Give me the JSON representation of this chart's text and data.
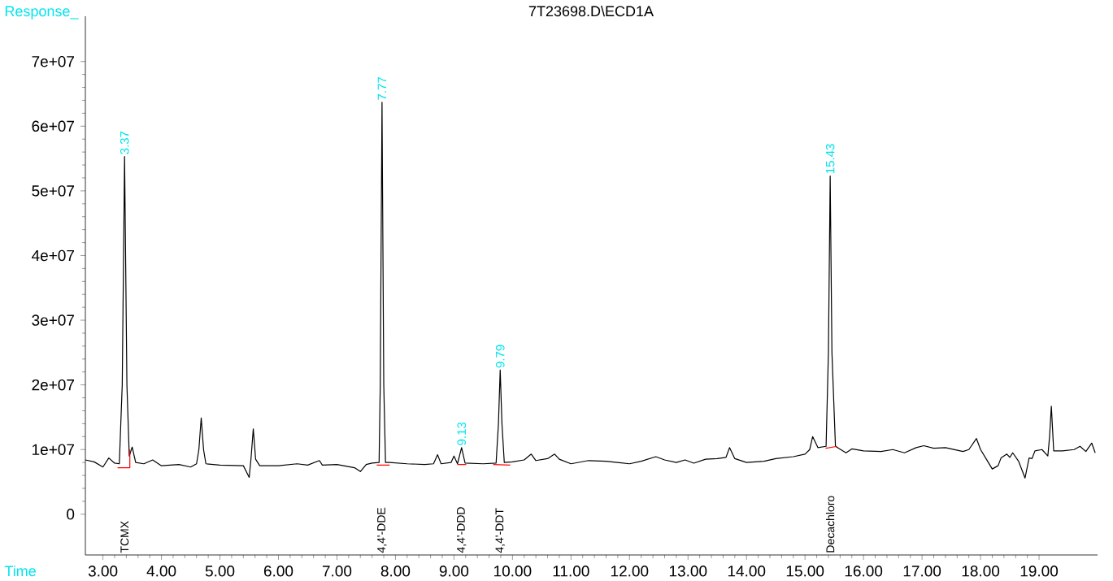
{
  "chart_data": {
    "type": "line",
    "title": "7T23698.D\\ECD1A",
    "xlabel": "Time",
    "ylabel": "Response_",
    "xlim": [
      2.7,
      20.0
    ],
    "ylim": [
      -6300000,
      77000000
    ],
    "xticks": [
      {
        "value": 3,
        "label": "3.00"
      },
      {
        "value": 4,
        "label": "4.00"
      },
      {
        "value": 5,
        "label": "5.00"
      },
      {
        "value": 6,
        "label": "6.00"
      },
      {
        "value": 7,
        "label": "7.00"
      },
      {
        "value": 8,
        "label": "8.00"
      },
      {
        "value": 9,
        "label": "9.00"
      },
      {
        "value": 10,
        "label": "10.00"
      },
      {
        "value": 11,
        "label": "11.00"
      },
      {
        "value": 12,
        "label": "12.00"
      },
      {
        "value": 13,
        "label": "13.00"
      },
      {
        "value": 14,
        "label": "14.00"
      },
      {
        "value": 15,
        "label": "15.00"
      },
      {
        "value": 16,
        "label": "16.00"
      },
      {
        "value": 17,
        "label": "17.00"
      },
      {
        "value": 18,
        "label": "18.00"
      },
      {
        "value": 19,
        "label": "19.00"
      }
    ],
    "yticks": [
      0,
      {
        "value": 10000000,
        "label": "1e+07"
      },
      {
        "value": 20000000,
        "label": "2e+07"
      },
      {
        "value": 30000000,
        "label": "3e+07"
      },
      {
        "value": 40000000,
        "label": "4e+07"
      },
      {
        "value": 50000000,
        "label": "5e+07"
      },
      {
        "value": 60000000,
        "label": "6e+07"
      },
      {
        "value": 70000000,
        "label": "7e+07"
      }
    ],
    "marker": "none",
    "line_style": "solid",
    "series": [
      {
        "color": "#000000",
        "x": [
          2.7,
          2.85,
          3.0,
          3.1,
          3.2,
          3.28,
          3.33,
          3.37,
          3.41,
          3.45,
          3.5,
          3.56,
          3.7,
          3.85,
          4.0,
          4.3,
          4.5,
          4.6,
          4.64,
          4.68,
          4.72,
          4.76,
          5.0,
          5.4,
          5.5,
          5.53,
          5.57,
          5.61,
          5.68,
          6.0,
          6.32,
          6.5,
          6.7,
          6.75,
          7.0,
          7.3,
          7.4,
          7.5,
          7.6,
          7.72,
          7.74,
          7.77,
          7.8,
          7.83,
          7.9,
          8.2,
          8.5,
          8.65,
          8.72,
          8.78,
          8.95,
          9.0,
          9.06,
          9.13,
          9.19,
          9.5,
          9.72,
          9.76,
          9.79,
          9.82,
          9.86,
          10.0,
          10.2,
          10.32,
          10.4,
          10.6,
          10.72,
          10.8,
          11.0,
          11.3,
          11.6,
          12.0,
          12.2,
          12.45,
          12.6,
          12.8,
          12.95,
          13.1,
          13.3,
          13.5,
          13.65,
          13.71,
          13.8,
          14.0,
          14.3,
          14.5,
          14.8,
          15.0,
          15.08,
          15.13,
          15.22,
          15.36,
          15.4,
          15.43,
          15.46,
          15.52,
          15.7,
          15.8,
          16.0,
          16.3,
          16.5,
          16.7,
          16.9,
          17.03,
          17.2,
          17.4,
          17.7,
          17.8,
          17.93,
          18.0,
          18.1,
          18.2,
          18.3,
          18.35,
          18.45,
          18.5,
          18.55,
          18.65,
          18.76,
          18.83,
          18.88,
          18.93,
          19.05,
          19.15,
          19.18,
          19.21,
          19.25,
          19.4,
          19.6,
          19.7,
          19.8,
          19.9,
          19.96
        ],
        "values": [
          8400000,
          8100000,
          7300000,
          8700000,
          7900000,
          7800000,
          20000000,
          55300000,
          20000000,
          9000000,
          10400000,
          8000000,
          7800000,
          8400000,
          7500000,
          7700000,
          7300000,
          7800000,
          10000000,
          14900000,
          10000000,
          7800000,
          7600000,
          7500000,
          5700000,
          8500000,
          13200000,
          8500000,
          7500000,
          7500000,
          7800000,
          7600000,
          8300000,
          7600000,
          7700000,
          7200000,
          6600000,
          7700000,
          7900000,
          8000000,
          20000000,
          63700000,
          20000000,
          8000000,
          8000000,
          7800000,
          7700000,
          7800000,
          9200000,
          7800000,
          8000000,
          9000000,
          7800000,
          10300000,
          7900000,
          7800000,
          7900000,
          14000000,
          22300000,
          14000000,
          8000000,
          8100000,
          8400000,
          9300000,
          8300000,
          8600000,
          9300000,
          8500000,
          7800000,
          8300000,
          8200000,
          7800000,
          8200000,
          8900000,
          8400000,
          8000000,
          8400000,
          7900000,
          8500000,
          8600000,
          8800000,
          10300000,
          8600000,
          8000000,
          8200000,
          8600000,
          8900000,
          9300000,
          10000000,
          12000000,
          10300000,
          10500000,
          25000000,
          52300000,
          25000000,
          10500000,
          9500000,
          10100000,
          9800000,
          9700000,
          10000000,
          9500000,
          10300000,
          10600000,
          10200000,
          10300000,
          9700000,
          10000000,
          11700000,
          10000000,
          8500000,
          7000000,
          7500000,
          8700000,
          9300000,
          8800000,
          9500000,
          8200000,
          5600000,
          8700000,
          8600000,
          9800000,
          10000000,
          9000000,
          12000000,
          16700000,
          9800000,
          9800000,
          10000000,
          10500000,
          9700000,
          11000000,
          9500000
        ]
      },
      {
        "color": "#ff0000",
        "x": [
          3.25,
          3.46,
          3.46,
          null,
          7.68,
          7.9,
          null,
          9.06,
          9.21,
          null,
          9.67,
          9.96,
          null,
          15.35,
          15.55
        ],
        "values": [
          7200000,
          7200000,
          10000000,
          null,
          7600000,
          7600000,
          null,
          7700000,
          7700000,
          null,
          7700000,
          7600000,
          null,
          10200000,
          10500000
        ]
      }
    ],
    "annotations": [
      {
        "text": "3.37",
        "x": 3.37,
        "y": 55300000
      },
      {
        "text": "7.77",
        "x": 7.77,
        "y": 63700000
      },
      {
        "text": "9.13",
        "x": 9.13,
        "y": 10300000
      },
      {
        "text": "9.79",
        "x": 9.79,
        "y": 22300000
      },
      {
        "text": "15.43",
        "x": 15.43,
        "y": 52300000
      },
      "TCMX",
      "4,4'-DDE",
      "4,4'-DDD",
      "4,4'-DDT",
      "Decachloro"
    ]
  }
}
